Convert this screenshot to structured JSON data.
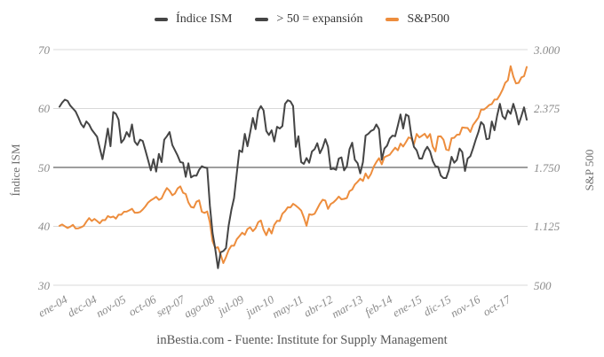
{
  "legend": {
    "items": [
      {
        "label": "Índice ISM",
        "color": "#454545"
      },
      {
        "label": "> 50 = expansión",
        "color": "#454545"
      },
      {
        "label": "S&P500",
        "color": "#ED8D3D"
      }
    ]
  },
  "left_axis": {
    "title": "Índice ISM",
    "ticks": [
      "70",
      "60",
      "50",
      "40",
      "30"
    ],
    "tick_values": [
      70,
      60,
      50,
      40,
      30
    ]
  },
  "right_axis": {
    "title": "S&P 500",
    "ticks": [
      "3.000",
      "2.375",
      "1.750",
      "1.125",
      "500"
    ],
    "tick_values": [
      3000,
      2375,
      1750,
      1125,
      500
    ]
  },
  "x_axis": {
    "tick_labels": [
      "ene-04",
      "dec-04",
      "nov-05",
      "oct-06",
      "sep-07",
      "ago-08",
      "jul-09",
      "jun-10",
      "may-11",
      "abr-12",
      "mar-13",
      "feb-14",
      "ene-15",
      "dic-15",
      "nov-16",
      "oct-17"
    ],
    "tick_month_indices": [
      0,
      11,
      22,
      33,
      44,
      55,
      66,
      77,
      88,
      99,
      110,
      121,
      132,
      143,
      154,
      165
    ]
  },
  "footer": {
    "text": "inBestia.com - Fuente: Institute for Supply Management"
  },
  "colors": {
    "ism_line": "#454545",
    "sp500_line": "#ED8D3D",
    "gridline": "#D9D9D9",
    "reference_line": "#7E7E7E",
    "tick_text": "#8a8a8a"
  },
  "chart_data": {
    "type": "line",
    "x_start": "ene-04",
    "x_step": "month",
    "grid": true,
    "legend_position": "top",
    "left_ylim": [
      30,
      70
    ],
    "right_ylim": [
      500,
      3000
    ],
    "reference_line": {
      "axis": "left",
      "value": 50,
      "label": "> 50 = expansión"
    },
    "series": [
      {
        "name": "Índice ISM",
        "axis": "left",
        "color": "#454545",
        "values": [
          60.3,
          61.0,
          61.5,
          61.3,
          60.5,
          60.0,
          59.5,
          58.5,
          57.4,
          56.8,
          57.8,
          57.3,
          56.4,
          55.8,
          55.2,
          53.3,
          51.4,
          53.8,
          56.6,
          53.6,
          59.4,
          59.1,
          58.1,
          54.2,
          54.8,
          56.0,
          55.2,
          57.3,
          54.4,
          53.8,
          54.7,
          54.5,
          52.9,
          51.2,
          49.5,
          51.4,
          49.3,
          52.3,
          50.9,
          54.7,
          55.3,
          56.0,
          53.8,
          52.9,
          52.0,
          50.9,
          50.8,
          48.4,
          50.7,
          48.3,
          48.6,
          48.6,
          49.6,
          50.2,
          50.0,
          49.9,
          43.5,
          38.9,
          36.2,
          32.9,
          35.6,
          35.8,
          36.3,
          40.1,
          42.8,
          44.8,
          48.9,
          52.9,
          52.6,
          55.7,
          53.6,
          55.9,
          58.4,
          56.5,
          59.6,
          60.4,
          59.7,
          56.2,
          55.5,
          56.3,
          54.4,
          56.9,
          56.6,
          57.0,
          60.8,
          61.4,
          61.2,
          60.4,
          53.5,
          55.3,
          50.9,
          50.6,
          51.6,
          50.8,
          52.7,
          53.1,
          54.1,
          52.4,
          53.4,
          54.8,
          53.5,
          49.7,
          49.8,
          49.6,
          51.5,
          51.7,
          49.5,
          50.2,
          53.1,
          54.2,
          51.3,
          50.7,
          49.0,
          50.9,
          55.4,
          55.7,
          56.2,
          56.4,
          57.3,
          56.5,
          51.3,
          53.2,
          53.7,
          54.9,
          55.4,
          55.3,
          57.1,
          59.0,
          56.6,
          59.0,
          58.7,
          55.5,
          53.5,
          52.9,
          51.5,
          51.5,
          52.8,
          53.5,
          52.7,
          51.1,
          50.2,
          50.1,
          48.6,
          48.2,
          48.2,
          49.5,
          51.8,
          50.8,
          51.3,
          53.2,
          52.6,
          49.4,
          51.5,
          51.9,
          53.2,
          54.7,
          56.0,
          57.7,
          57.2,
          54.8,
          54.9,
          57.8,
          56.3,
          58.8,
          60.8,
          58.7,
          58.2,
          59.7,
          59.1,
          60.8,
          59.3,
          57.3,
          58.7,
          60.2,
          58.1
        ]
      },
      {
        "name": "S&P500",
        "axis": "right",
        "color": "#ED8D3D",
        "values": [
          1131,
          1145,
          1126,
          1107,
          1121,
          1141,
          1102,
          1104,
          1115,
          1130,
          1174,
          1212,
          1181,
          1204,
          1181,
          1157,
          1192,
          1191,
          1234,
          1220,
          1229,
          1207,
          1249,
          1248,
          1280,
          1281,
          1295,
          1311,
          1270,
          1270,
          1277,
          1304,
          1336,
          1378,
          1401,
          1418,
          1438,
          1406,
          1421,
          1482,
          1531,
          1503,
          1455,
          1474,
          1527,
          1549,
          1481,
          1468,
          1379,
          1331,
          1323,
          1386,
          1400,
          1280,
          1267,
          1283,
          1166,
          969,
          896,
          903,
          826,
          735,
          798,
          873,
          919,
          919,
          987,
          1021,
          1057,
          1036,
          1096,
          1115,
          1074,
          1104,
          1169,
          1187,
          1089,
          1031,
          1102,
          1049,
          1141,
          1183,
          1181,
          1258,
          1286,
          1327,
          1326,
          1364,
          1345,
          1321,
          1292,
          1219,
          1131,
          1253,
          1247,
          1258,
          1312,
          1366,
          1408,
          1398,
          1310,
          1362,
          1379,
          1407,
          1441,
          1412,
          1416,
          1426,
          1498,
          1515,
          1569,
          1598,
          1631,
          1606,
          1686,
          1633,
          1682,
          1757,
          1806,
          1848,
          1783,
          1859,
          1872,
          1884,
          1924,
          1960,
          1931,
          2003,
          1972,
          2018,
          2068,
          2059,
          1995,
          2105,
          2068,
          2086,
          2107,
          2063,
          2104,
          1972,
          1920,
          2079,
          2080,
          2044,
          1940,
          1932,
          2060,
          2065,
          2097,
          2099,
          2174,
          2171,
          2168,
          2126,
          2199,
          2239,
          2279,
          2364,
          2363,
          2384,
          2412,
          2423,
          2470,
          2472,
          2519,
          2575,
          2648,
          2674,
          2824,
          2714,
          2641,
          2648,
          2705,
          2718,
          2816
        ]
      }
    ]
  }
}
